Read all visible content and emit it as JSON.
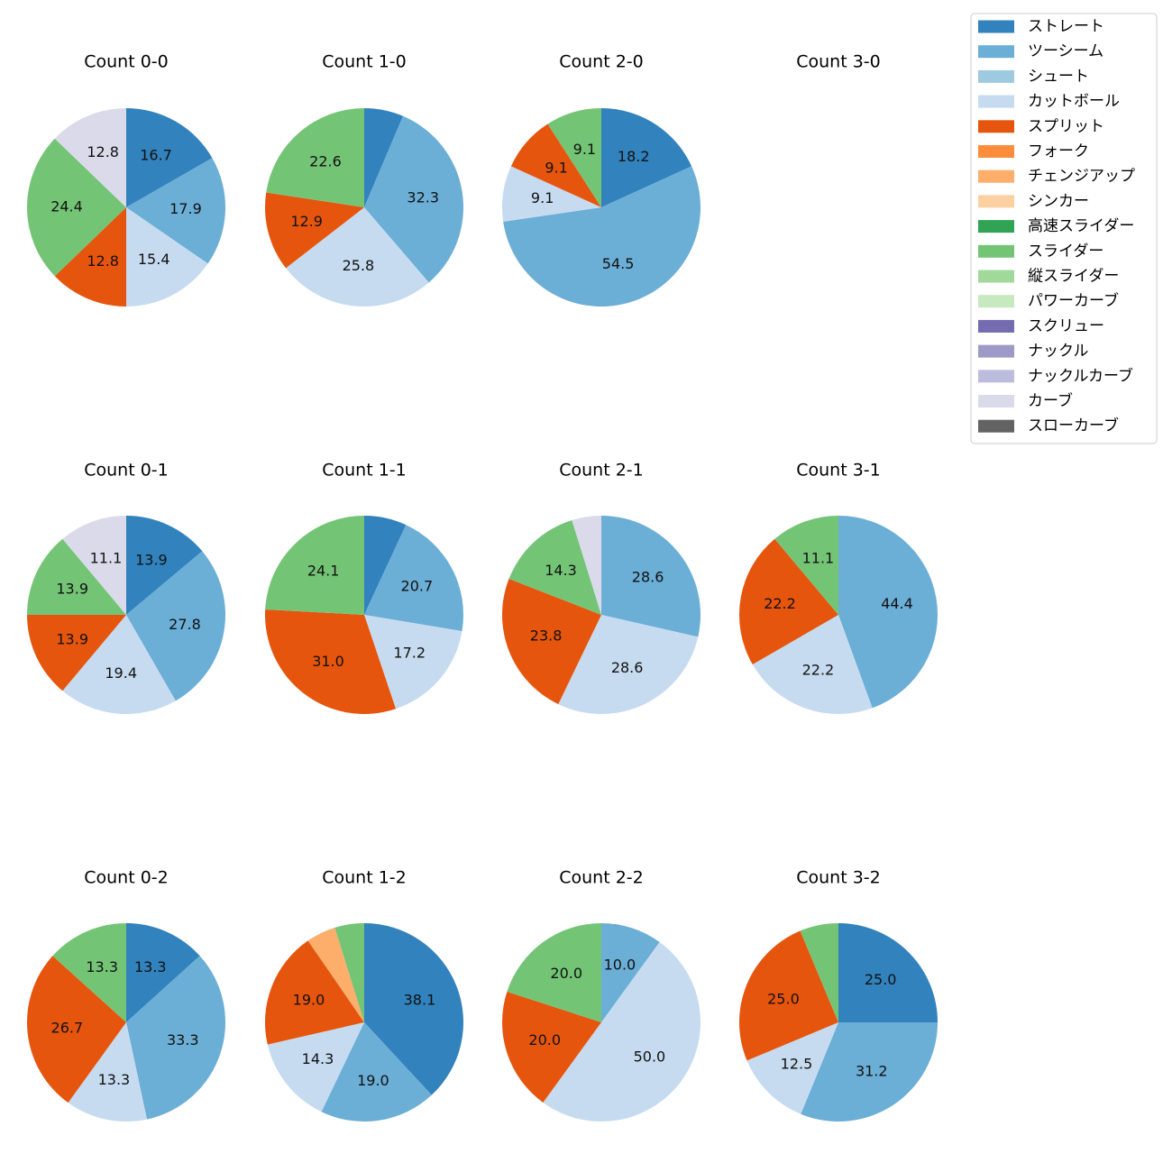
{
  "colors": {
    "ストレート": "#3182bd",
    "ツーシーム": "#6baed6",
    "シュート": "#9ecae1",
    "カットボール": "#c6dbef",
    "スプリット": "#e6550d",
    "フォーク": "#fd8d3c",
    "チェンジアップ": "#fdae6b",
    "シンカー": "#fdd0a2",
    "高速スライダー": "#31a354",
    "スライダー": "#74c476",
    "縦スライダー": "#a1d99b",
    "パワーカーブ": "#c7e9c0",
    "スクリュー": "#756bb1",
    "ナックル": "#9e9ac8",
    "ナックルカーブ": "#bcbddc",
    "カーブ": "#dadaeb",
    "スローカーブ": "#636363"
  },
  "chart_data": {
    "type": "pie",
    "legend": {
      "position": "top-right",
      "entries": [
        "ストレート",
        "ツーシーム",
        "シュート",
        "カットボール",
        "スプリット",
        "フォーク",
        "チェンジアップ",
        "シンカー",
        "高速スライダー",
        "スライダー",
        "縦スライダー",
        "パワーカーブ",
        "スクリュー",
        "ナックル",
        "ナックルカーブ",
        "カーブ",
        "スローカーブ"
      ]
    },
    "charts": [
      {
        "title": "Count 0-0",
        "slices": [
          {
            "pitch": "ストレート",
            "value": 16.7,
            "label": "16.7"
          },
          {
            "pitch": "ツーシーム",
            "value": 17.9,
            "label": "17.9"
          },
          {
            "pitch": "カットボール",
            "value": 15.4,
            "label": "15.4"
          },
          {
            "pitch": "スプリット",
            "value": 12.8,
            "label": "12.8"
          },
          {
            "pitch": "スライダー",
            "value": 24.4,
            "label": "24.4"
          },
          {
            "pitch": "カーブ",
            "value": 12.8,
            "label": "12.8"
          }
        ]
      },
      {
        "title": "Count 1-0",
        "slices": [
          {
            "pitch": "ストレート",
            "value": 6.4,
            "label": ""
          },
          {
            "pitch": "ツーシーム",
            "value": 32.3,
            "label": "32.3"
          },
          {
            "pitch": "カットボール",
            "value": 25.8,
            "label": "25.8"
          },
          {
            "pitch": "スプリット",
            "value": 12.9,
            "label": "12.9"
          },
          {
            "pitch": "スライダー",
            "value": 22.6,
            "label": "22.6"
          }
        ]
      },
      {
        "title": "Count 2-0",
        "slices": [
          {
            "pitch": "ストレート",
            "value": 18.2,
            "label": "18.2"
          },
          {
            "pitch": "ツーシーム",
            "value": 54.5,
            "label": "54.5"
          },
          {
            "pitch": "カットボール",
            "value": 9.1,
            "label": "9.1"
          },
          {
            "pitch": "スプリット",
            "value": 9.1,
            "label": "9.1"
          },
          {
            "pitch": "スライダー",
            "value": 9.1,
            "label": "9.1"
          }
        ]
      },
      {
        "title": "Count 3-0",
        "slices": []
      },
      {
        "title": "Count 0-1",
        "slices": [
          {
            "pitch": "ストレート",
            "value": 13.9,
            "label": "13.9"
          },
          {
            "pitch": "ツーシーム",
            "value": 27.8,
            "label": "27.8"
          },
          {
            "pitch": "カットボール",
            "value": 19.4,
            "label": "19.4"
          },
          {
            "pitch": "スプリット",
            "value": 13.9,
            "label": "13.9"
          },
          {
            "pitch": "スライダー",
            "value": 13.9,
            "label": "13.9"
          },
          {
            "pitch": "カーブ",
            "value": 11.1,
            "label": "11.1"
          }
        ]
      },
      {
        "title": "Count 1-1",
        "slices": [
          {
            "pitch": "ストレート",
            "value": 6.9,
            "label": ""
          },
          {
            "pitch": "ツーシーム",
            "value": 20.7,
            "label": "20.7"
          },
          {
            "pitch": "カットボール",
            "value": 17.2,
            "label": "17.2"
          },
          {
            "pitch": "スプリット",
            "value": 31.0,
            "label": "31.0"
          },
          {
            "pitch": "スライダー",
            "value": 24.1,
            "label": "24.1"
          }
        ]
      },
      {
        "title": "Count 2-1",
        "slices": [
          {
            "pitch": "ツーシーム",
            "value": 28.6,
            "label": "28.6"
          },
          {
            "pitch": "カットボール",
            "value": 28.6,
            "label": "28.6"
          },
          {
            "pitch": "スプリット",
            "value": 23.8,
            "label": "23.8"
          },
          {
            "pitch": "スライダー",
            "value": 14.3,
            "label": "14.3"
          },
          {
            "pitch": "カーブ",
            "value": 4.8,
            "label": ""
          }
        ]
      },
      {
        "title": "Count 3-1",
        "slices": [
          {
            "pitch": "ツーシーム",
            "value": 44.4,
            "label": "44.4"
          },
          {
            "pitch": "カットボール",
            "value": 22.2,
            "label": "22.2"
          },
          {
            "pitch": "スプリット",
            "value": 22.2,
            "label": "22.2"
          },
          {
            "pitch": "スライダー",
            "value": 11.1,
            "label": "11.1"
          }
        ]
      },
      {
        "title": "Count 0-2",
        "slices": [
          {
            "pitch": "ストレート",
            "value": 13.3,
            "label": "13.3"
          },
          {
            "pitch": "ツーシーム",
            "value": 33.3,
            "label": "33.3"
          },
          {
            "pitch": "カットボール",
            "value": 13.3,
            "label": "13.3"
          },
          {
            "pitch": "スプリット",
            "value": 26.7,
            "label": "26.7"
          },
          {
            "pitch": "スライダー",
            "value": 13.3,
            "label": "13.3"
          }
        ]
      },
      {
        "title": "Count 1-2",
        "slices": [
          {
            "pitch": "ストレート",
            "value": 38.1,
            "label": "38.1"
          },
          {
            "pitch": "ツーシーム",
            "value": 19.0,
            "label": "19.0"
          },
          {
            "pitch": "カットボール",
            "value": 14.3,
            "label": "14.3"
          },
          {
            "pitch": "スプリット",
            "value": 19.0,
            "label": "19.0"
          },
          {
            "pitch": "チェンジアップ",
            "value": 4.8,
            "label": ""
          },
          {
            "pitch": "スライダー",
            "value": 4.8,
            "label": ""
          }
        ]
      },
      {
        "title": "Count 2-2",
        "slices": [
          {
            "pitch": "ツーシーム",
            "value": 10.0,
            "label": "10.0"
          },
          {
            "pitch": "カットボール",
            "value": 50.0,
            "label": "50.0"
          },
          {
            "pitch": "スプリット",
            "value": 20.0,
            "label": "20.0"
          },
          {
            "pitch": "スライダー",
            "value": 20.0,
            "label": "20.0"
          }
        ]
      },
      {
        "title": "Count 3-2",
        "slices": [
          {
            "pitch": "ストレート",
            "value": 25.0,
            "label": "25.0"
          },
          {
            "pitch": "ツーシーム",
            "value": 31.2,
            "label": "31.2"
          },
          {
            "pitch": "カットボール",
            "value": 12.5,
            "label": "12.5"
          },
          {
            "pitch": "スプリット",
            "value": 25.0,
            "label": "25.0"
          },
          {
            "pitch": "スライダー",
            "value": 6.3,
            "label": ""
          }
        ]
      }
    ]
  }
}
